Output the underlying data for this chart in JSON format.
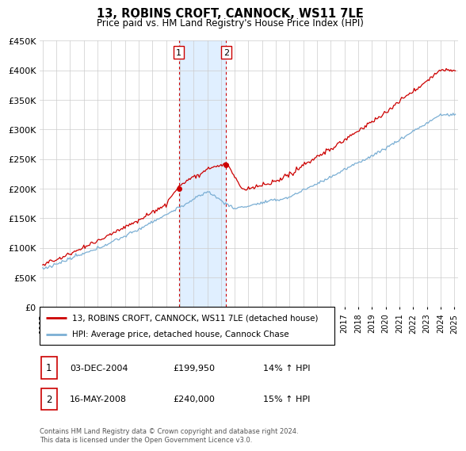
{
  "title": "13, ROBINS CROFT, CANNOCK, WS11 7LE",
  "subtitle": "Price paid vs. HM Land Registry's House Price Index (HPI)",
  "legend_line1": "13, ROBINS CROFT, CANNOCK, WS11 7LE (detached house)",
  "legend_line2": "HPI: Average price, detached house, Cannock Chase",
  "sale1_label": "1",
  "sale1_date": "03-DEC-2004",
  "sale1_price": "£199,950",
  "sale1_hpi": "14% ↑ HPI",
  "sale2_label": "2",
  "sale2_date": "16-MAY-2008",
  "sale2_price": "£240,000",
  "sale2_hpi": "15% ↑ HPI",
  "footer": "Contains HM Land Registry data © Crown copyright and database right 2024.\nThis data is licensed under the Open Government Licence v3.0.",
  "red_color": "#cc0000",
  "blue_color": "#7bafd4",
  "shading_color": "#ddeeff",
  "ylim_min": 0,
  "ylim_max": 450000,
  "year_start": 1995,
  "year_end": 2025,
  "sale1_year": 2004.917,
  "sale2_year": 2008.375,
  "sale1_price_val": 199950,
  "sale2_price_val": 240000
}
